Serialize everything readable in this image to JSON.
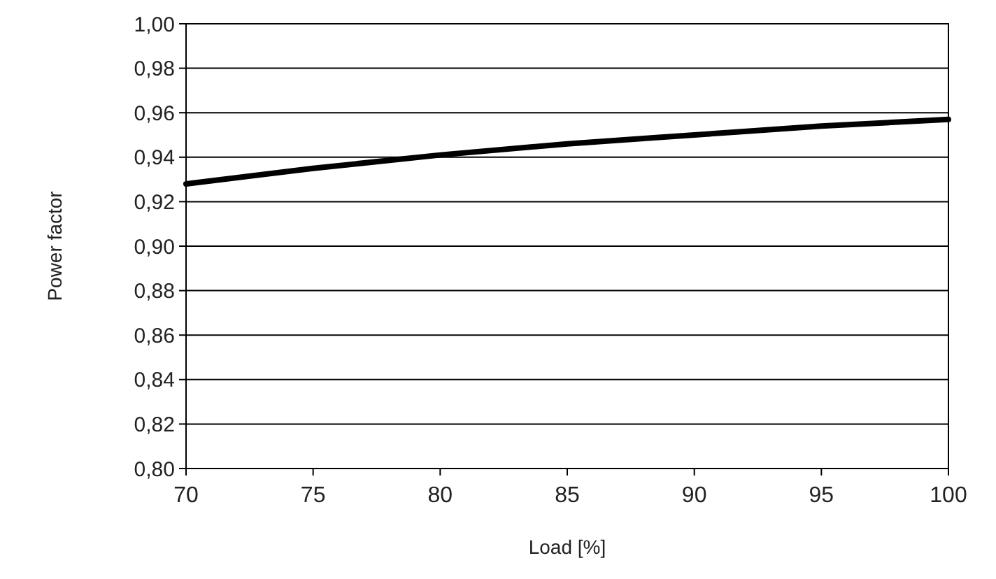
{
  "chart_data": {
    "type": "line",
    "xlabel": "Load [%]",
    "ylabel": "Power factor",
    "x": [
      70,
      75,
      80,
      85,
      90,
      95,
      100
    ],
    "series": [
      {
        "color": "#000000",
        "values": [
          0.928,
          0.935,
          0.941,
          0.946,
          0.95,
          0.954,
          0.957
        ]
      }
    ],
    "xlim": [
      70,
      100
    ],
    "xticks": [
      70,
      75,
      80,
      85,
      90,
      95,
      100
    ],
    "ylim": [
      0.8,
      1.0
    ],
    "yticks": [
      {
        "value": 0.8,
        "label": "0,80"
      },
      {
        "value": 0.82,
        "label": "0,82"
      },
      {
        "value": 0.84,
        "label": "0,84"
      },
      {
        "value": 0.86,
        "label": "0,86"
      },
      {
        "value": 0.88,
        "label": "0,88"
      },
      {
        "value": 0.9,
        "label": "0,90"
      },
      {
        "value": 0.92,
        "label": "0,92"
      },
      {
        "value": 0.94,
        "label": "0,94"
      },
      {
        "value": 0.96,
        "label": "0,96"
      },
      {
        "value": 0.98,
        "label": "0,98"
      },
      {
        "value": 1.0,
        "label": "1,00"
      }
    ],
    "grid": "y",
    "marker": "none",
    "line_style": "solid"
  }
}
